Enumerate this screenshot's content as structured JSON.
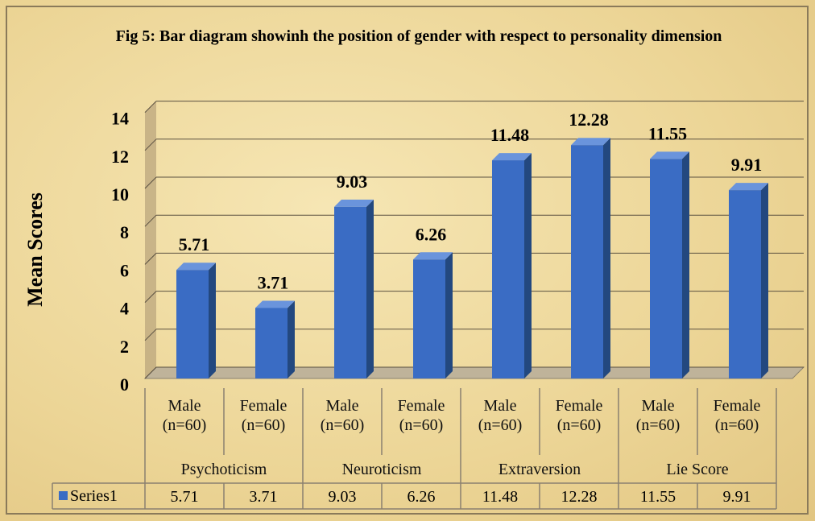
{
  "chart_data": {
    "type": "bar",
    "title": "Fig 5: Bar diagram showinh the position of gender with respect to personality dimension",
    "y_label": "Mean Scores",
    "categories": [
      "Male (n=60)",
      "Female (n=60)",
      "Male (n=60)",
      "Female (n=60)",
      "Male (n=60)",
      "Female (n=60)",
      "Male (n=60)",
      "Female (n=60)"
    ],
    "category_groups": [
      "Psychoticism",
      "Neuroticism",
      "Extraversion",
      "Lie Score"
    ],
    "series": [
      {
        "name": "Series1",
        "color": "#3a6cc4",
        "values": [
          5.71,
          3.71,
          9.03,
          6.26,
          11.48,
          12.28,
          11.55,
          9.91
        ]
      }
    ],
    "ylim": [
      0,
      14
    ],
    "yticks": [
      0,
      2,
      4,
      6,
      8,
      10,
      12,
      14
    ],
    "grid": true,
    "data_table": true
  }
}
